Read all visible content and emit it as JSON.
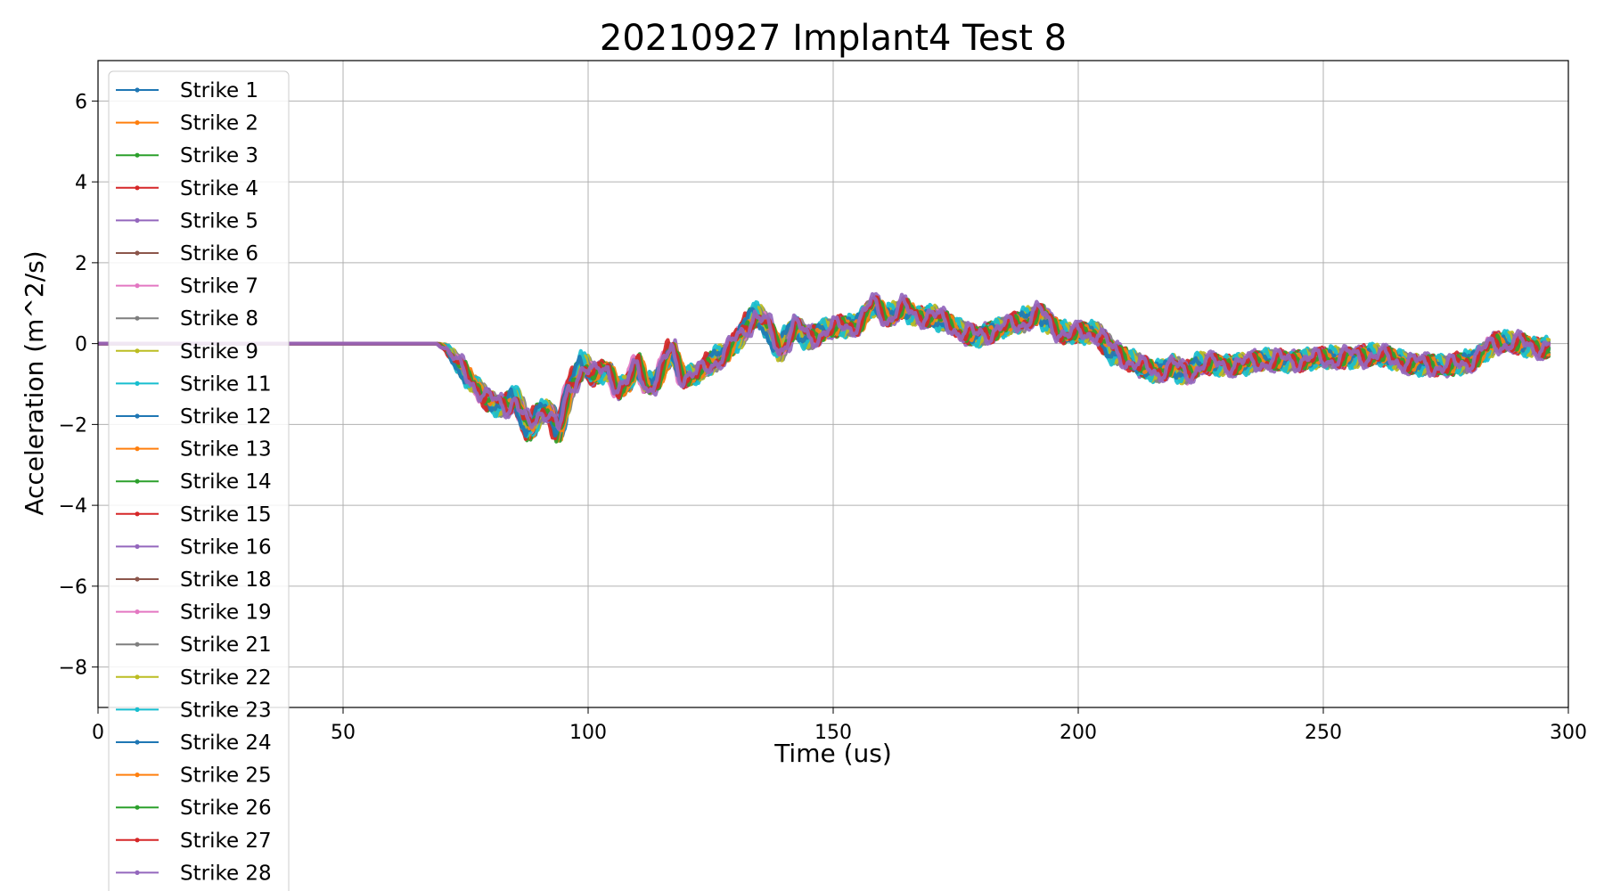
{
  "chart_data": {
    "type": "line",
    "title": "20210927 Implant4 Test 8",
    "xlabel": "Time (us)",
    "ylabel": "Acceleration (m^2/s)",
    "xlim": [
      0,
      300
    ],
    "ylim": [
      -9,
      7
    ],
    "xticks": [
      0,
      50,
      100,
      150,
      200,
      250,
      300
    ],
    "xtick_labels": [
      "0",
      "50",
      "100",
      "150",
      "200",
      "250",
      "300"
    ],
    "yticks": [
      -8,
      -6,
      -4,
      -2,
      0,
      2,
      4,
      6
    ],
    "ytick_labels": [
      "−8",
      "−6",
      "−4",
      "−2",
      "0",
      "2",
      "4",
      "6"
    ],
    "grid": true,
    "legend_position": "upper-left",
    "marker": "dot",
    "profile": {
      "x": [
        0,
        69,
        71,
        75,
        80,
        83,
        85,
        88,
        90,
        92,
        94,
        96,
        99,
        101,
        104,
        106,
        108,
        110,
        112,
        114,
        117,
        119,
        122,
        125,
        128,
        131,
        134,
        136,
        139,
        142,
        145,
        148,
        151,
        155,
        158,
        161,
        164,
        167,
        170,
        173,
        176,
        179,
        182,
        185,
        188,
        192,
        195,
        198,
        201,
        204,
        207,
        210,
        213,
        216,
        219,
        222,
        225,
        228,
        231,
        235,
        240,
        245,
        250,
        255,
        260,
        265,
        270,
        275,
        280,
        285,
        290,
        296
      ],
      "y": [
        0,
        0,
        -0.1,
        -0.8,
        -1.4,
        -1.6,
        -1.3,
        -2.2,
        -1.7,
        -1.6,
        -2.2,
        -1.2,
        -0.5,
        -0.8,
        -0.6,
        -1.1,
        -1.0,
        -0.5,
        -1.1,
        -0.9,
        -0.1,
        -0.8,
        -0.8,
        -0.5,
        -0.2,
        0.2,
        0.75,
        0.5,
        -0.2,
        0.5,
        0.1,
        0.3,
        0.4,
        0.5,
        1.0,
        0.6,
        0.9,
        0.7,
        0.7,
        0.5,
        0.3,
        0.2,
        0.3,
        0.4,
        0.5,
        0.8,
        0.4,
        0.2,
        0.25,
        0.3,
        -0.2,
        -0.4,
        -0.6,
        -0.7,
        -0.5,
        -0.8,
        -0.5,
        -0.5,
        -0.5,
        -0.5,
        -0.4,
        -0.4,
        -0.4,
        -0.3,
        -0.3,
        -0.4,
        -0.5,
        -0.6,
        -0.4,
        0.0,
        0.0,
        -0.1
      ]
    },
    "series": [
      {
        "name": "Strike 1",
        "color": "#1f77b4"
      },
      {
        "name": "Strike 2",
        "color": "#ff7f0e"
      },
      {
        "name": "Strike 3",
        "color": "#2ca02c"
      },
      {
        "name": "Strike 4",
        "color": "#d62728"
      },
      {
        "name": "Strike 5",
        "color": "#9467bd"
      },
      {
        "name": "Strike 6",
        "color": "#8c564b"
      },
      {
        "name": "Strike 7",
        "color": "#e377c2"
      },
      {
        "name": "Strike 8",
        "color": "#7f7f7f"
      },
      {
        "name": "Strike 9",
        "color": "#bcbd22"
      },
      {
        "name": "Strike 11",
        "color": "#17becf"
      },
      {
        "name": "Strike 12",
        "color": "#1f77b4"
      },
      {
        "name": "Strike 13",
        "color": "#ff7f0e"
      },
      {
        "name": "Strike 14",
        "color": "#2ca02c"
      },
      {
        "name": "Strike 15",
        "color": "#d62728"
      },
      {
        "name": "Strike 16",
        "color": "#9467bd"
      },
      {
        "name": "Strike 18",
        "color": "#8c564b"
      },
      {
        "name": "Strike 19",
        "color": "#e377c2"
      },
      {
        "name": "Strike 21",
        "color": "#7f7f7f"
      },
      {
        "name": "Strike 22",
        "color": "#bcbd22"
      },
      {
        "name": "Strike 23",
        "color": "#17becf"
      },
      {
        "name": "Strike 24",
        "color": "#1f77b4"
      },
      {
        "name": "Strike 25",
        "color": "#ff7f0e"
      },
      {
        "name": "Strike 26",
        "color": "#2ca02c"
      },
      {
        "name": "Strike 27",
        "color": "#d62728"
      },
      {
        "name": "Strike 28",
        "color": "#9467bd"
      }
    ]
  }
}
